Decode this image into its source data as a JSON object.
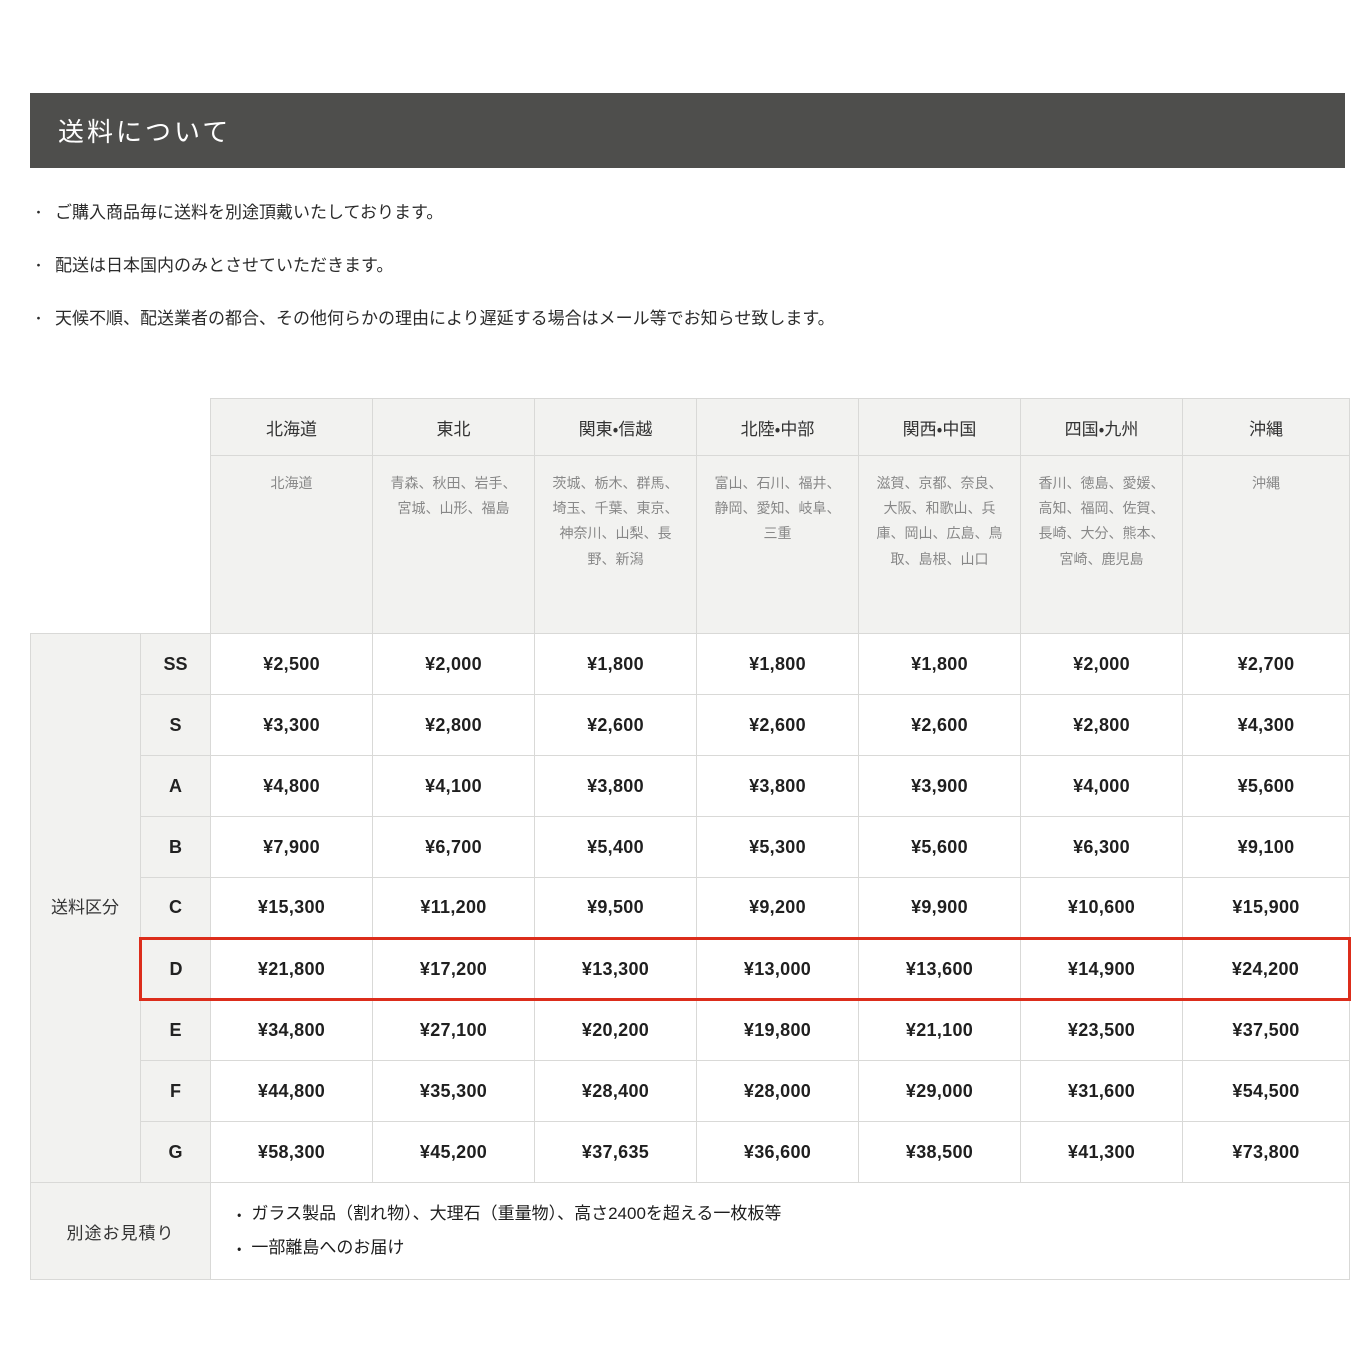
{
  "title_bar": {
    "label": "送料について"
  },
  "bullet_char": "・",
  "notes": [
    "ご購入商品毎に送料を別途頂戴いたしております。",
    "配送は日本国内のみとさせていただきます。",
    "天候不順、配送業者の都合、その他何らかの理由により遅延する場合はメール等でお知らせ致します。"
  ],
  "table": {
    "corner_label": "送料区分",
    "regions": [
      {
        "name": "北海道",
        "prefectures": "北海道"
      },
      {
        "name": "東北",
        "prefectures": "青森、秋田、岩手、宮城、山形、福島"
      },
      {
        "name": "関東・信越",
        "prefectures": "茨城、栃木、群馬、埼玉、千葉、東京、神奈川、山梨、長野、新潟"
      },
      {
        "name": "北陸・中部",
        "prefectures": "富山、石川、福井、静岡、愛知、岐阜、三重"
      },
      {
        "name": "関西・中国",
        "prefectures": "滋賀、京都、奈良、大阪、和歌山、兵庫、岡山、広島、鳥取、島根、山口"
      },
      {
        "name": "四国・九州",
        "prefectures": "香川、徳島、愛媛、高知、福岡、佐賀、長崎、大分、熊本、宮崎、鹿児島"
      },
      {
        "name": "沖縄",
        "prefectures": "沖縄"
      }
    ],
    "rows": [
      {
        "label": "SS",
        "highlighted": false,
        "prices": [
          "¥2,500",
          "¥2,000",
          "¥1,800",
          "¥1,800",
          "¥1,800",
          "¥2,000",
          "¥2,700"
        ]
      },
      {
        "label": "S",
        "highlighted": false,
        "prices": [
          "¥3,300",
          "¥2,800",
          "¥2,600",
          "¥2,600",
          "¥2,600",
          "¥2,800",
          "¥4,300"
        ]
      },
      {
        "label": "A",
        "highlighted": false,
        "prices": [
          "¥4,800",
          "¥4,100",
          "¥3,800",
          "¥3,800",
          "¥3,900",
          "¥4,000",
          "¥5,600"
        ]
      },
      {
        "label": "B",
        "highlighted": false,
        "prices": [
          "¥7,900",
          "¥6,700",
          "¥5,400",
          "¥5,300",
          "¥5,600",
          "¥6,300",
          "¥9,100"
        ]
      },
      {
        "label": "C",
        "highlighted": false,
        "prices": [
          "¥15,300",
          "¥11,200",
          "¥9,500",
          "¥9,200",
          "¥9,900",
          "¥10,600",
          "¥15,900"
        ]
      },
      {
        "label": "D",
        "highlighted": true,
        "prices": [
          "¥21,800",
          "¥17,200",
          "¥13,300",
          "¥13,000",
          "¥13,600",
          "¥14,900",
          "¥24,200"
        ]
      },
      {
        "label": "E",
        "highlighted": false,
        "prices": [
          "¥34,800",
          "¥27,100",
          "¥20,200",
          "¥19,800",
          "¥21,100",
          "¥23,500",
          "¥37,500"
        ]
      },
      {
        "label": "F",
        "highlighted": false,
        "prices": [
          "¥44,800",
          "¥35,300",
          "¥28,400",
          "¥28,000",
          "¥29,000",
          "¥31,600",
          "¥54,500"
        ]
      },
      {
        "label": "G",
        "highlighted": false,
        "prices": [
          "¥58,300",
          "¥45,200",
          "¥37,635",
          "¥36,600",
          "¥38,500",
          "¥41,300",
          "¥73,800"
        ]
      }
    ],
    "estimate": {
      "label": "別途お見積り",
      "items": [
        "ガラス製品（割れ物）、大理石（重量物）、高さ2400を超える一枚板等",
        "一部離島へのお届け"
      ]
    }
  },
  "colors": {
    "title_bar_bg": "#4e4e4c",
    "cell_bg_gray": "#f2f2f0",
    "cell_border": "#d9d9d7",
    "highlight_red": "#dc2d1b",
    "price_text": "#1f1f1f",
    "prefecture_text": "#888888"
  }
}
